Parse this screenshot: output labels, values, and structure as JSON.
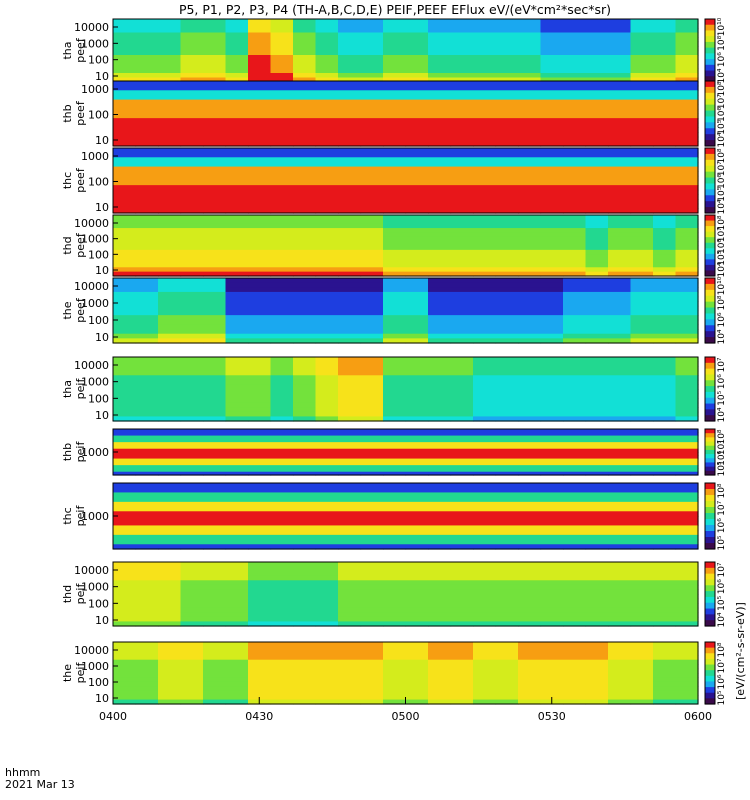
{
  "title": "P5, P1, P2, P3, P4 (TH-A,B,C,D,E) PEIF,PEEF EFlux eV/(eV*cm²*sec*sr)",
  "colorbar_unit_label": "[eV/(cm²-s-sr-eV)]",
  "time_axis": {
    "label": "hhmm",
    "date": "2021 Mar 13",
    "ticks": [
      "0400",
      "0430",
      "0500",
      "0530",
      "0600"
    ]
  },
  "chart_data": {
    "type": "heatmap",
    "x_range": [
      "04:00",
      "06:00"
    ],
    "panels": [
      {
        "label_line1": "tha",
        "label_line2": "peef",
        "ticks": [
          "10000",
          "1000",
          "100",
          "10"
        ],
        "colorbar_ticks": [
          "10¹⁰",
          "10⁸",
          "10⁶",
          "10⁴"
        ],
        "levels": [
          5,
          5,
          5,
          6,
          6,
          5,
          9,
          8,
          6,
          5,
          4,
          4,
          5,
          5,
          4,
          4,
          4,
          4,
          4,
          3,
          3,
          3,
          3,
          5,
          5,
          6
        ]
      },
      {
        "label_line1": "thb",
        "label_line2": "peef",
        "ticks": [
          "1000",
          "100",
          "10"
        ],
        "colorbar_ticks": [
          "10⁸",
          "10⁷",
          "10⁶",
          "10⁵",
          "10⁴"
        ],
        "levels": [
          8,
          8,
          8,
          8,
          8,
          8,
          8,
          8,
          8,
          8,
          8,
          8,
          8,
          8,
          8,
          8,
          8,
          8,
          8,
          8,
          8,
          8,
          8,
          8,
          8,
          8
        ]
      },
      {
        "label_line1": "thc",
        "label_line2": "peef",
        "ticks": [
          "1000",
          "100",
          "10"
        ],
        "colorbar_ticks": [
          "10⁸",
          "10⁷",
          "10⁶",
          "10⁵",
          "10⁴"
        ],
        "levels": [
          8,
          8,
          8,
          8,
          8,
          8,
          8,
          8,
          8,
          8,
          8,
          8,
          8,
          8,
          8,
          8,
          8,
          8,
          8,
          8,
          8,
          8,
          8,
          8,
          8,
          8
        ]
      },
      {
        "label_line1": "thd",
        "label_line2": "peef",
        "ticks": [
          "10000",
          "1000",
          "100",
          "10"
        ],
        "colorbar_ticks": [
          "10⁸",
          "10⁷",
          "10⁶",
          "10⁵",
          "10⁴"
        ],
        "levels": [
          7,
          7,
          7,
          7,
          7,
          7,
          7,
          7,
          7,
          7,
          7,
          7,
          6,
          6,
          6,
          6,
          6,
          6,
          6,
          6,
          6,
          5,
          6,
          6,
          5,
          6
        ]
      },
      {
        "label_line1": "the",
        "label_line2": "peef",
        "ticks": [
          "10000",
          "1000",
          "100",
          "10"
        ],
        "colorbar_ticks": [
          "10¹⁰",
          "10⁸",
          "10⁶",
          "10⁴"
        ],
        "levels": [
          4,
          4,
          5,
          5,
          5,
          2,
          2,
          2,
          2,
          2,
          2,
          2,
          4,
          4,
          2,
          2,
          2,
          2,
          2,
          2,
          3,
          3,
          3,
          4,
          4,
          4
        ]
      },
      {
        "label_line1": "tha",
        "label_line2": "peif",
        "ticks": [
          "10000",
          "1000",
          "100",
          "10"
        ],
        "colorbar_ticks": [
          "10⁷",
          "10⁶",
          "10⁵",
          "10⁴"
        ],
        "levels": [
          5,
          5,
          5,
          5,
          5,
          6,
          6,
          5,
          6,
          7,
          8,
          8,
          5,
          5,
          5,
          5,
          4,
          4,
          4,
          4,
          4,
          4,
          4,
          4,
          4,
          5
        ]
      },
      {
        "label_line1": "thb",
        "label_line2": "peif",
        "ticks": [
          "1000"
        ],
        "colorbar_ticks": [
          "10⁸",
          "10⁷",
          "10⁶",
          "10⁵"
        ],
        "levels": [
          7,
          7,
          7,
          7,
          7,
          7,
          7,
          7,
          7,
          7,
          7,
          7,
          7,
          7,
          7,
          7,
          7,
          7,
          7,
          7,
          7,
          7,
          7,
          7,
          7,
          7
        ]
      },
      {
        "label_line1": "thc",
        "label_line2": "peif",
        "ticks": [
          "1000"
        ],
        "colorbar_ticks": [
          "10⁸",
          "10⁷",
          "10⁶",
          "10⁵"
        ],
        "levels": [
          6,
          6,
          6,
          6,
          6,
          6,
          6,
          6,
          6,
          6,
          6,
          6,
          6,
          6,
          6,
          6,
          6,
          6,
          6,
          6,
          6,
          6,
          6,
          6,
          6,
          6
        ]
      },
      {
        "label_line1": "thd",
        "label_line2": "peif",
        "ticks": [
          "10000",
          "1000",
          "100",
          "10"
        ],
        "colorbar_ticks": [
          "10⁷",
          "10⁶",
          "10⁵",
          "10⁴"
        ],
        "levels": [
          7,
          7,
          7,
          6,
          6,
          6,
          5,
          5,
          5,
          5,
          6,
          6,
          6,
          6,
          6,
          6,
          6,
          6,
          6,
          6,
          6,
          6,
          6,
          6,
          6,
          6
        ]
      },
      {
        "label_line1": "the",
        "label_line2": "peif",
        "ticks": [
          "10000",
          "1000",
          "100",
          "10"
        ],
        "colorbar_ticks": [
          "10⁸",
          "10⁷",
          "10⁶",
          "10⁵"
        ],
        "levels": [
          6,
          6,
          7,
          7,
          6,
          6,
          8,
          8,
          8,
          8,
          8,
          8,
          7,
          7,
          8,
          8,
          7,
          7,
          8,
          8,
          8,
          8,
          7,
          7,
          6,
          6
        ]
      }
    ]
  }
}
